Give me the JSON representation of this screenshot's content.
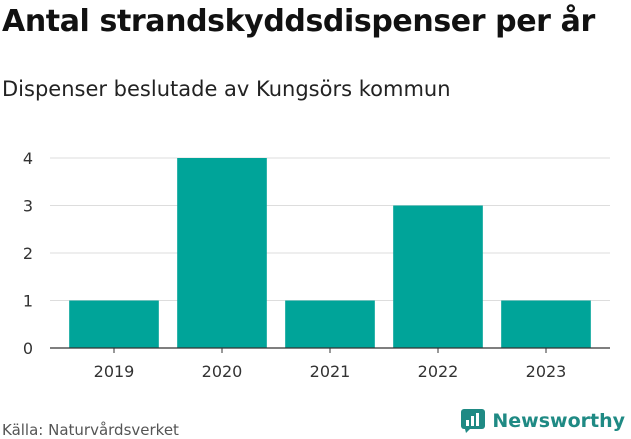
{
  "chart_data": {
    "type": "bar",
    "title": "Antal strandskyddsdispenser per år",
    "subtitle": "Dispenser beslutade av Kungsörs kommun",
    "categories": [
      "2019",
      "2020",
      "2021",
      "2022",
      "2023"
    ],
    "values": [
      1,
      4,
      1,
      3,
      1
    ],
    "ylim": [
      0,
      4
    ],
    "yticks": [
      0,
      1,
      2,
      3,
      4
    ],
    "xlabel": "",
    "ylabel": "",
    "grid": true,
    "bar_color": "#00a499"
  },
  "footer": {
    "source": "Källa: Naturvårdsverket",
    "brand": "Newsworthy"
  },
  "colors": {
    "brand": "#1f8a84",
    "grid": "#dddddd",
    "axis": "#333333"
  }
}
